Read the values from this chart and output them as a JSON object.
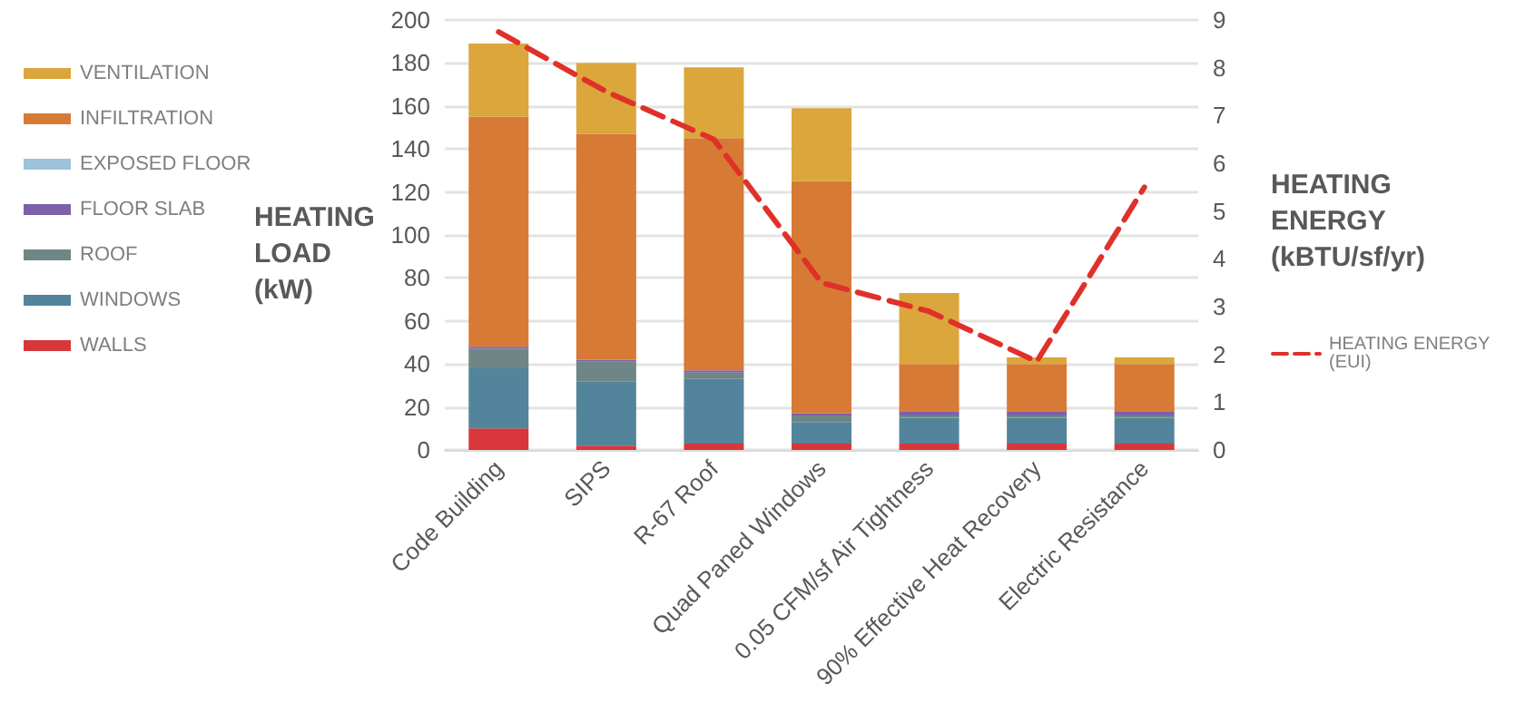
{
  "chart_data": {
    "type": "bar",
    "stacked": true,
    "ylabel": "HEATING LOAD (kW)",
    "y2label": "HEATING ENERGY (kBTU/sf/yr)",
    "categories": [
      "Code Building",
      "SIPS",
      "R-67 Roof",
      "Quad Paned Windows",
      "0.05 CFM/sf Air Tightness",
      "90% Effective Heat Recovery",
      "Electric Resistance"
    ],
    "series": [
      {
        "name": "WALLS",
        "color": "#d7373a",
        "values": [
          10,
          2,
          3,
          3,
          3,
          3,
          3
        ]
      },
      {
        "name": "WINDOWS",
        "color": "#52849c",
        "values": [
          28,
          30,
          30,
          10,
          12,
          12,
          12
        ]
      },
      {
        "name": "ROOF",
        "color": "#6f8686",
        "values": [
          9,
          9,
          3,
          3,
          1,
          1,
          1
        ]
      },
      {
        "name": "FLOOR SLAB",
        "color": "#7b61a8",
        "values": [
          1,
          1,
          1,
          1,
          2,
          2,
          2
        ]
      },
      {
        "name": "EXPOSED FLOOR",
        "color": "#9cc3da",
        "values": [
          0,
          0,
          0,
          0,
          0,
          0,
          0
        ]
      },
      {
        "name": "INFILTRATION",
        "color": "#d77a35",
        "values": [
          107,
          105,
          108,
          108,
          22,
          22,
          22
        ]
      },
      {
        "name": "VENTILATION",
        "color": "#dba63c",
        "values": [
          34,
          33,
          33,
          34,
          33,
          3,
          3
        ]
      },
      {
        "name": "HEATING ENERGY (EUI)",
        "type": "line",
        "axis": "y2",
        "color": "#e0302a",
        "line_style": "dashed",
        "marker": "none",
        "values": [
          8.75,
          7.5,
          6.5,
          3.5,
          2.9,
          1.85,
          5.5
        ]
      }
    ],
    "ylim": [
      0,
      200
    ],
    "yticks": [
      0,
      20,
      40,
      60,
      80,
      100,
      120,
      140,
      160,
      180,
      200
    ],
    "y2lim": [
      0,
      9
    ],
    "y2ticks": [
      0,
      1,
      2,
      3,
      4,
      5,
      6,
      7,
      8,
      9
    ],
    "grid": "y",
    "legend": "left"
  }
}
